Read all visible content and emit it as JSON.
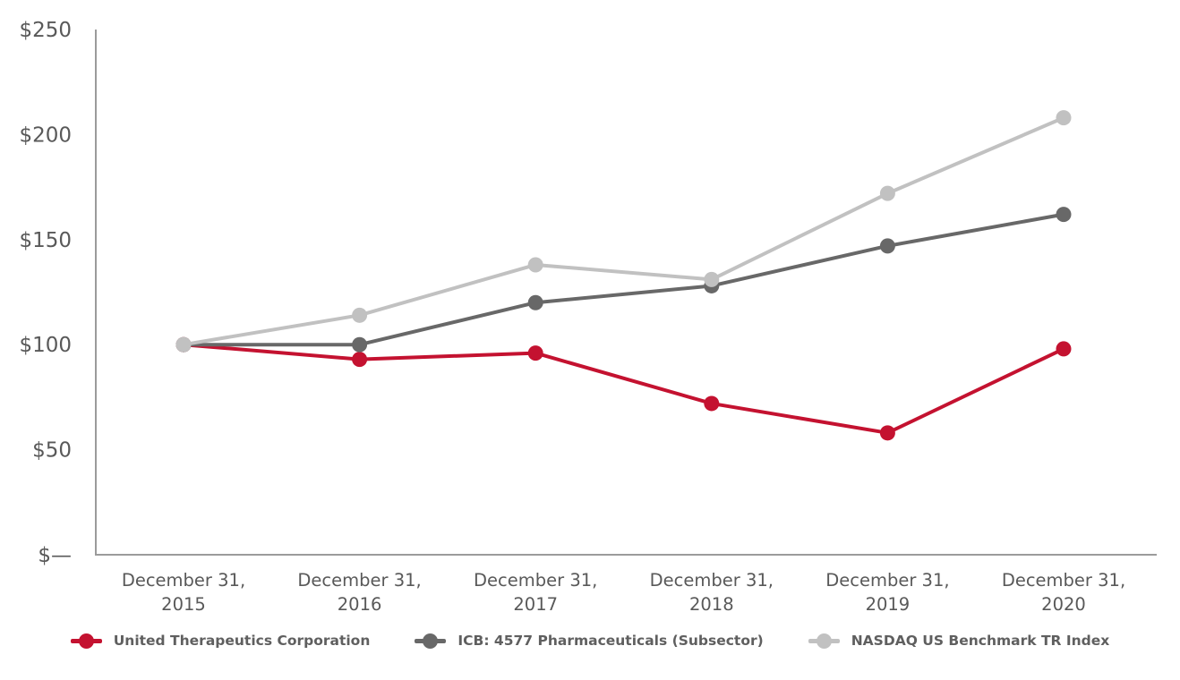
{
  "chart_data": {
    "type": "line",
    "title": "",
    "xlabel": "",
    "ylabel": "",
    "ylim": [
      0,
      250
    ],
    "grid": false,
    "legend_position": "bottom",
    "categories": [
      {
        "line1": "December 31,",
        "line2": "2015"
      },
      {
        "line1": "December 31,",
        "line2": "2016"
      },
      {
        "line1": "December 31,",
        "line2": "2017"
      },
      {
        "line1": "December 31,",
        "line2": "2018"
      },
      {
        "line1": "December 31,",
        "line2": "2019"
      },
      {
        "line1": "December 31,",
        "line2": "2020"
      }
    ],
    "y_ticks": [
      {
        "value": 0,
        "label": "$—"
      },
      {
        "value": 50,
        "label": "$50"
      },
      {
        "value": 100,
        "label": "$100"
      },
      {
        "value": 150,
        "label": "$150"
      },
      {
        "value": 200,
        "label": "$200"
      },
      {
        "value": 250,
        "label": "$250"
      }
    ],
    "series": [
      {
        "name": "United Therapeutics Corporation",
        "color": "#C41230",
        "values": [
          100,
          93,
          96,
          72,
          58,
          98
        ]
      },
      {
        "name": "ICB: 4577 Pharmaceuticals (Subsector)",
        "color": "#686868",
        "values": [
          100,
          100,
          120,
          128,
          147,
          162
        ]
      },
      {
        "name": "NASDAQ US Benchmark TR Index",
        "color": "#C1C1C1",
        "values": [
          100,
          114,
          138,
          131,
          172,
          208
        ]
      }
    ],
    "colors": {
      "axis": "#9B9B9B",
      "tick_label": "#595959",
      "legend_text": "#5F5F5F"
    }
  }
}
